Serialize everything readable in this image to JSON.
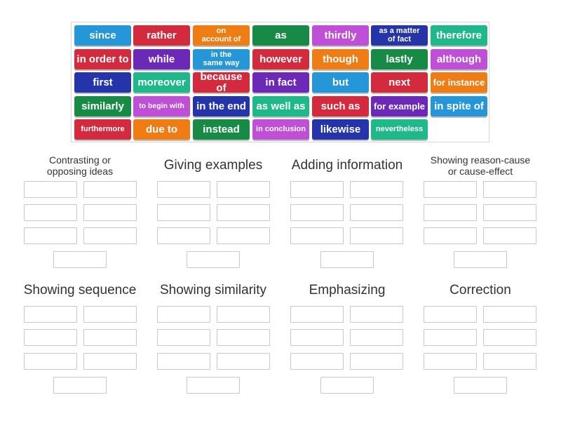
{
  "colors": {
    "blue": "#2597d8",
    "red": "#d32a3e",
    "orange": "#f07c14",
    "green": "#178a45",
    "purple": "#be4fd6",
    "navy": "#2534a8",
    "teal": "#1fb88a",
    "violet": "#6c29b8",
    "darkblue": "#1e5fb4"
  },
  "tiles": [
    [
      "since",
      "rather",
      "on\naccount of",
      "as",
      "thirdly",
      "as a matter\nof fact",
      "therefore"
    ],
    [
      "in order to",
      "while",
      "in the\nsame way",
      "however",
      "though",
      "lastly",
      "although"
    ],
    [
      "first",
      "moreover",
      "because of",
      "in fact",
      "but",
      "next",
      "for instance"
    ],
    [
      "similarly",
      "to begin with",
      "in the end",
      "as well as",
      "such as",
      "for example",
      "in spite of"
    ],
    [
      "furthermore",
      "due to",
      "instead",
      "in conclusion",
      "likewise",
      "nevertheless"
    ]
  ],
  "categories": [
    {
      "title": "Contrasting or\nopposing ideas"
    },
    {
      "title": "Giving examples"
    },
    {
      "title": "Adding information"
    },
    {
      "title": "Showing reason-cause\nor cause-effect"
    },
    {
      "title": "Showing sequence"
    },
    {
      "title": "Showing similarity"
    },
    {
      "title": "Emphasizing"
    },
    {
      "title": "Correction"
    }
  ]
}
